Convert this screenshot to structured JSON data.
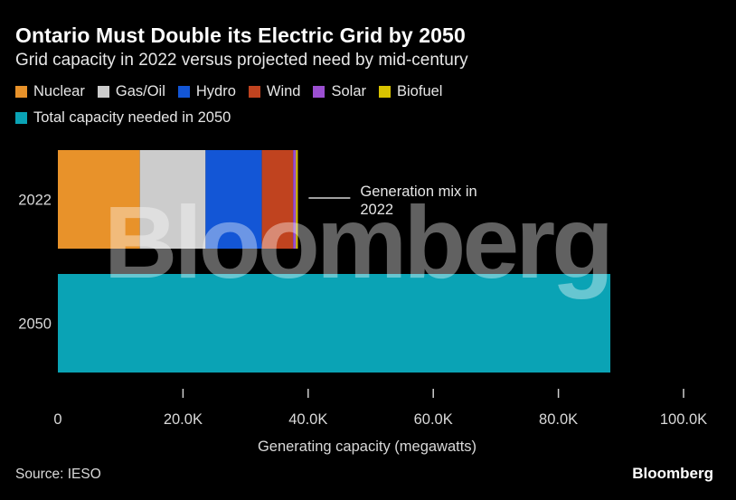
{
  "title": "Ontario Must Double its Electric Grid by 2050",
  "subtitle": "Grid capacity in 2022 versus projected need by mid-century",
  "legend": [
    {
      "label": "Nuclear",
      "color": "#e8922a"
    },
    {
      "label": "Gas/Oil",
      "color": "#cccccc"
    },
    {
      "label": "Hydro",
      "color": "#1356d6"
    },
    {
      "label": "Wind",
      "color": "#c0431f"
    },
    {
      "label": "Solar",
      "color": "#9b4fd1"
    },
    {
      "label": "Biofuel",
      "color": "#d9c300"
    },
    {
      "label": "Total capacity needed in 2050",
      "color": "#0aa3b5"
    }
  ],
  "chart_data": {
    "type": "bar",
    "orientation": "horizontal",
    "stacked": true,
    "categories": [
      "2022",
      "2050"
    ],
    "series": [
      {
        "name": "Nuclear",
        "values": [
          13100,
          0
        ],
        "color": "#e8922a"
      },
      {
        "name": "Gas/Oil",
        "values": [
          10500,
          0
        ],
        "color": "#cccccc"
      },
      {
        "name": "Hydro",
        "values": [
          9000,
          0
        ],
        "color": "#1356d6"
      },
      {
        "name": "Wind",
        "values": [
          5000,
          0
        ],
        "color": "#c0431f"
      },
      {
        "name": "Solar",
        "values": [
          450,
          0
        ],
        "color": "#9b4fd1"
      },
      {
        "name": "Biofuel",
        "values": [
          300,
          0
        ],
        "color": "#d9c300"
      },
      {
        "name": "Total capacity needed in 2050",
        "values": [
          0,
          88300
        ],
        "color": "#0aa3b5"
      }
    ],
    "xlabel": "Generating capacity (megawatts)",
    "ylabel": "",
    "xlim": [
      0,
      100000
    ],
    "xticks": [
      0,
      20000,
      40000,
      60000,
      80000,
      100000
    ],
    "xtick_labels": [
      "0",
      "20.0K",
      "40.0K",
      "60.0K",
      "80.0K",
      "100.0K"
    ],
    "annotation": {
      "text_lines": [
        "Generation mix in",
        "2022"
      ],
      "category": "2022"
    },
    "grid": false,
    "legend_position": "top-left"
  },
  "watermark": "Bloomberg",
  "source": "Source: IESO",
  "brand": "Bloomberg"
}
